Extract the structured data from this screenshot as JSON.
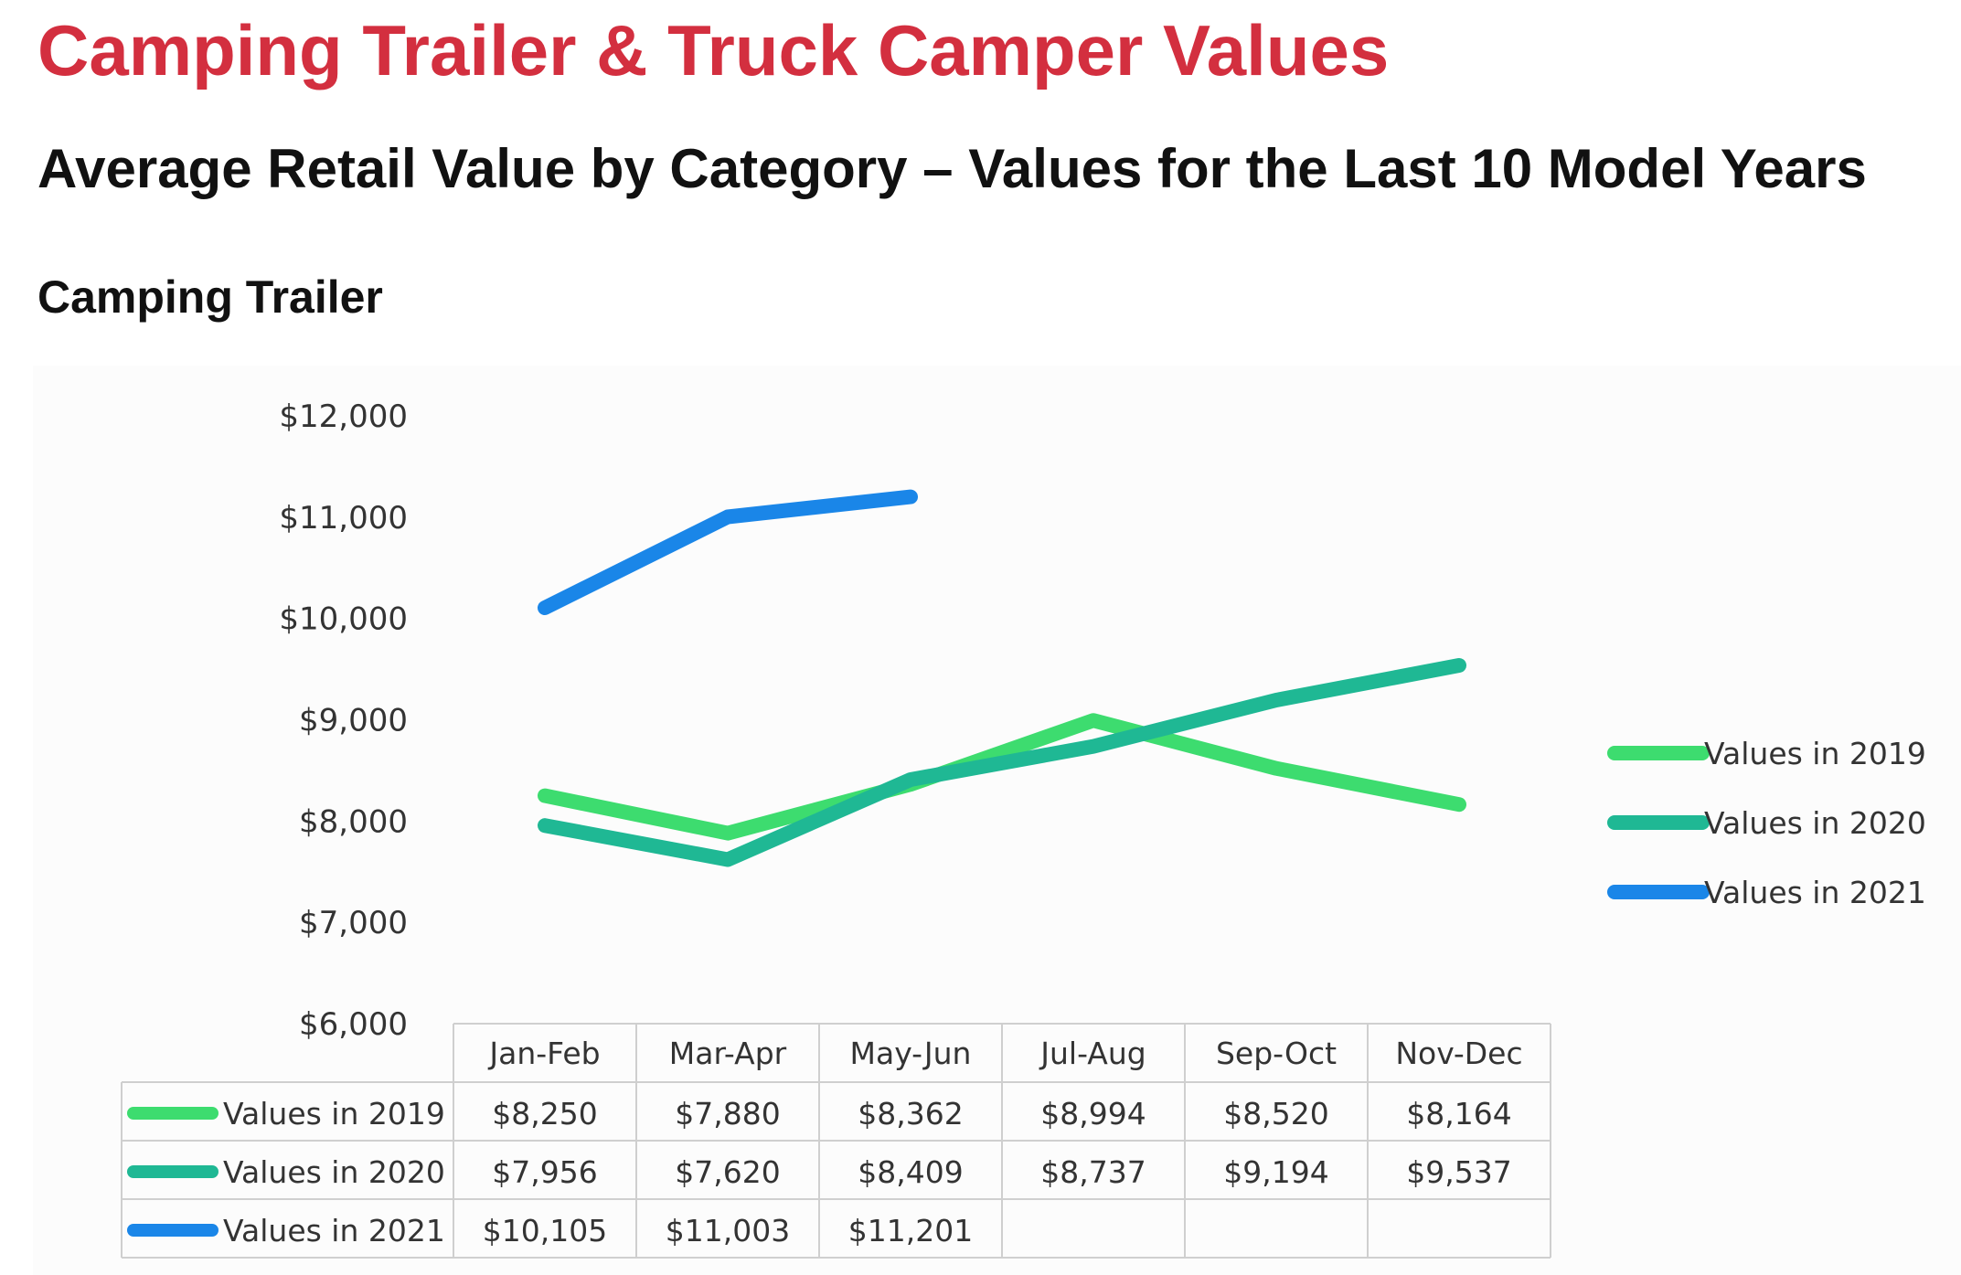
{
  "header": {
    "title": "Camping Trailer & Truck Camper Values",
    "subtitle": "Average Retail Value by Category – Values for the Last 10 Model Years",
    "section": "Camping Trailer"
  },
  "colors": {
    "title": "#d32f3f",
    "series_2019": "#3ddc6f",
    "series_2020": "#1fb894",
    "series_2021": "#1a86e8"
  },
  "chart_data": {
    "type": "line",
    "categories": [
      "Jan-Feb",
      "Mar-Apr",
      "May-Jun",
      "Jul-Aug",
      "Sep-Oct",
      "Nov-Dec"
    ],
    "series": [
      {
        "name": "Values in 2019",
        "values": [
          8250,
          7880,
          8362,
          8994,
          8520,
          8164
        ],
        "labels": [
          "$8,250",
          "$7,880",
          "$8,362",
          "$8,994",
          "$8,520",
          "$8,164"
        ],
        "color": "#3ddc6f"
      },
      {
        "name": "Values in 2020",
        "values": [
          7956,
          7620,
          8409,
          8737,
          9194,
          9537
        ],
        "labels": [
          "$7,956",
          "$7,620",
          "$8,409",
          "$8,737",
          "$9,194",
          "$9,537"
        ],
        "color": "#1fb894"
      },
      {
        "name": "Values in 2021",
        "values": [
          10105,
          11003,
          11201,
          null,
          null,
          null
        ],
        "labels": [
          "$10,105",
          "$11,003",
          "$11,201",
          "",
          "",
          ""
        ],
        "color": "#1a86e8"
      }
    ],
    "yticks": [
      6000,
      7000,
      8000,
      9000,
      10000,
      11000,
      12000
    ],
    "ytick_labels": [
      "$6,000",
      "$7,000",
      "$8,000",
      "$9,000",
      "$10,000",
      "$11,000",
      "$12,000"
    ],
    "ylim": [
      6000,
      12000
    ],
    "grid": false,
    "legend_position": "right",
    "data_table": true
  }
}
